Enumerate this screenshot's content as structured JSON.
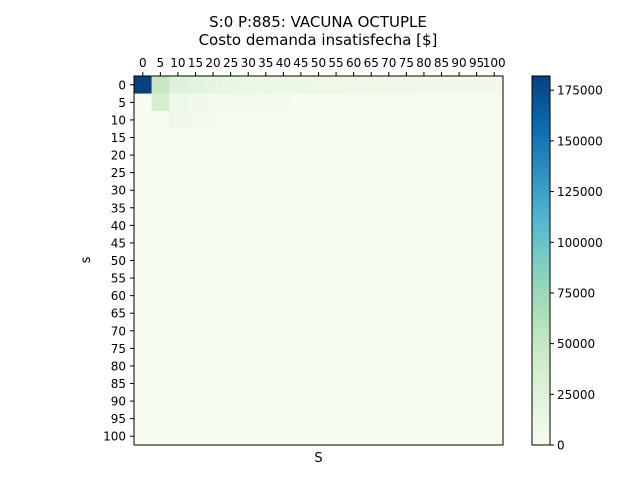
{
  "chart_data": {
    "type": "heatmap",
    "title_line1": "S:0 P:885: VACUNA OCTUPLE",
    "title_line2": "Costo demanda insatisfecha [$]",
    "xlabel": "S",
    "ylabel": "s",
    "x_values": [
      0,
      5,
      10,
      15,
      20,
      25,
      30,
      35,
      40,
      45,
      50,
      55,
      60,
      65,
      70,
      75,
      80,
      85,
      90,
      95,
      100
    ],
    "y_values": [
      0,
      5,
      10,
      15,
      20,
      25,
      30,
      35,
      40,
      45,
      50,
      55,
      60,
      65,
      70,
      75,
      80,
      85,
      90,
      95,
      100
    ],
    "x_tick_labels": [
      "0",
      "5",
      "10",
      "15",
      "20",
      "25",
      "30",
      "35",
      "40",
      "45",
      "50",
      "55",
      "60",
      "65",
      "70",
      "75",
      "80",
      "85",
      "90",
      "95",
      "100"
    ],
    "y_tick_labels": [
      "0",
      "5",
      "10",
      "15",
      "20",
      "25",
      "30",
      "35",
      "40",
      "45",
      "50",
      "55",
      "60",
      "65",
      "70",
      "75",
      "80",
      "85",
      "90",
      "95",
      "100"
    ],
    "colorbar": {
      "min": 0,
      "max": 182000,
      "ticks": [
        0,
        25000,
        50000,
        75000,
        100000,
        125000,
        150000,
        175000
      ],
      "tick_labels": [
        "0",
        "25000",
        "50000",
        "75000",
        "100000",
        "125000",
        "150000",
        "175000"
      ],
      "colormap": "GnBu"
    },
    "cells": [
      {
        "row": 0,
        "col": 0,
        "value": 182000
      },
      {
        "row": 0,
        "col": 1,
        "value": 50000
      },
      {
        "row": 0,
        "col": 2,
        "value": 25000
      },
      {
        "row": 0,
        "col": 3,
        "value": 20000
      },
      {
        "row": 0,
        "col": 4,
        "value": 17000
      },
      {
        "row": 0,
        "col": 5,
        "value": 15000
      },
      {
        "row": 0,
        "col": 6,
        "value": 13000
      },
      {
        "row": 0,
        "col": 7,
        "value": 12000
      },
      {
        "row": 0,
        "col": 8,
        "value": 11000
      },
      {
        "row": 0,
        "col": 9,
        "value": 10500
      },
      {
        "row": 0,
        "col": 10,
        "value": 10000
      },
      {
        "row": 0,
        "col": 11,
        "value": 9500
      },
      {
        "row": 0,
        "col": 12,
        "value": 9000
      },
      {
        "row": 0,
        "col": 13,
        "value": 8500
      },
      {
        "row": 0,
        "col": 14,
        "value": 8000
      },
      {
        "row": 0,
        "col": 15,
        "value": 7500
      },
      {
        "row": 0,
        "col": 16,
        "value": 7000
      },
      {
        "row": 0,
        "col": 17,
        "value": 7000
      },
      {
        "row": 0,
        "col": 18,
        "value": 6500
      },
      {
        "row": 0,
        "col": 19,
        "value": 6500
      },
      {
        "row": 0,
        "col": 20,
        "value": 6000
      },
      {
        "row": 1,
        "col": 1,
        "value": 35000
      },
      {
        "row": 1,
        "col": 2,
        "value": 9000
      },
      {
        "row": 1,
        "col": 3,
        "value": 6000
      },
      {
        "row": 1,
        "col": 4,
        "value": 5000
      },
      {
        "row": 1,
        "col": 5,
        "value": 4500
      },
      {
        "row": 1,
        "col": 6,
        "value": 4000
      },
      {
        "row": 1,
        "col": 7,
        "value": 3500
      },
      {
        "row": 1,
        "col": 8,
        "value": 3000
      },
      {
        "row": 2,
        "col": 2,
        "value": 7000
      },
      {
        "row": 2,
        "col": 3,
        "value": 4000
      },
      {
        "row": 2,
        "col": 4,
        "value": 3000
      }
    ],
    "default_value": 1000
  }
}
